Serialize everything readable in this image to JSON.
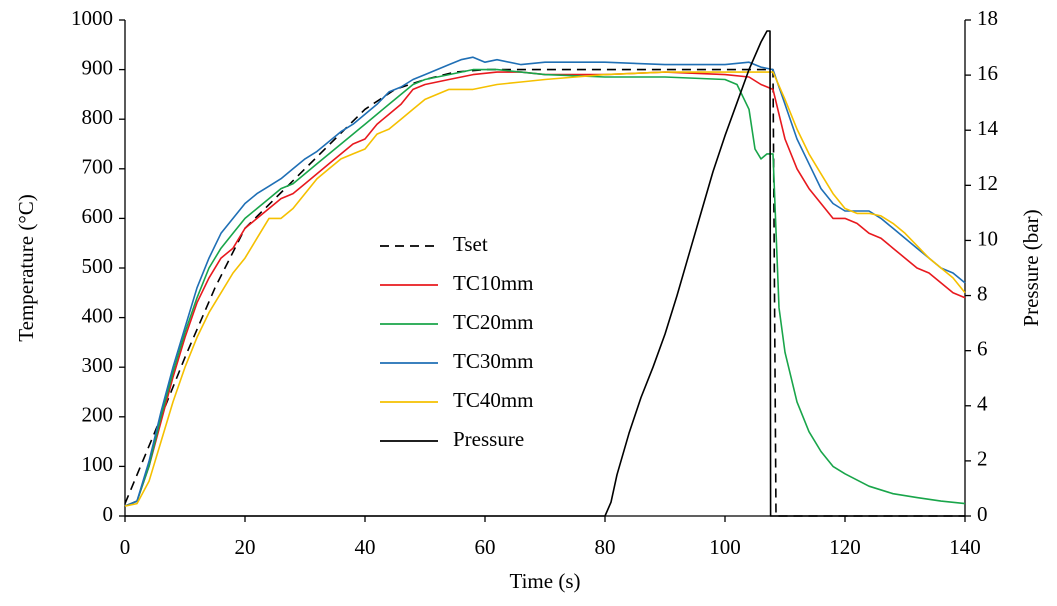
{
  "chart_data": {
    "type": "line",
    "x_label": "Time  (s)",
    "y_label": "Temperature (°C)",
    "y2_label": "Pressure (bar)",
    "xlim": [
      0,
      140
    ],
    "xticks": [
      0,
      20,
      40,
      60,
      80,
      100,
      120,
      140
    ],
    "ylim": [
      0,
      1000
    ],
    "yticks": [
      0,
      100,
      200,
      300,
      400,
      500,
      600,
      700,
      800,
      900,
      1000
    ],
    "y2lim": [
      0,
      18
    ],
    "y2ticks": [
      0,
      2,
      4,
      6,
      8,
      10,
      12,
      14,
      16,
      18
    ],
    "series": [
      {
        "name": "Tset",
        "color": "#000000",
        "line_style": "dashed",
        "x": [
          0,
          5,
          10,
          15,
          20,
          25,
          30,
          35,
          40,
          45,
          50,
          55,
          60,
          65,
          70,
          80,
          90,
          100,
          108,
          108.5,
          140
        ],
        "values": [
          25,
          170,
          320,
          460,
          580,
          640,
          700,
          760,
          820,
          860,
          880,
          895,
          900,
          900,
          900,
          900,
          900,
          900,
          900,
          0,
          0
        ]
      },
      {
        "name": "TC10mm",
        "color": "#e8191e",
        "line_style": "solid",
        "x": [
          0,
          2,
          4,
          6,
          8,
          10,
          12,
          14,
          16,
          18,
          20,
          22,
          24,
          26,
          28,
          30,
          32,
          34,
          36,
          38,
          40,
          42,
          44,
          46,
          48,
          50,
          54,
          58,
          62,
          66,
          70,
          80,
          90,
          100,
          104,
          106,
          108,
          110,
          112,
          114,
          116,
          118,
          120,
          122,
          124,
          126,
          128,
          130,
          132,
          134,
          136,
          138,
          140
        ],
        "values": [
          20,
          30,
          100,
          190,
          280,
          360,
          430,
          480,
          520,
          540,
          580,
          600,
          620,
          640,
          650,
          670,
          690,
          710,
          730,
          750,
          760,
          790,
          810,
          830,
          860,
          870,
          880,
          890,
          895,
          895,
          890,
          890,
          895,
          890,
          885,
          870,
          860,
          760,
          700,
          660,
          630,
          600,
          600,
          590,
          570,
          560,
          540,
          520,
          500,
          490,
          470,
          450,
          440
        ]
      },
      {
        "name": "TC20mm",
        "color": "#19a54a",
        "line_style": "solid",
        "x": [
          0,
          2,
          4,
          6,
          8,
          10,
          12,
          14,
          16,
          18,
          20,
          22,
          24,
          26,
          28,
          30,
          32,
          34,
          36,
          38,
          40,
          42,
          44,
          46,
          48,
          50,
          54,
          58,
          62,
          66,
          70,
          80,
          90,
          100,
          102,
          104,
          105,
          106,
          107,
          108,
          109,
          110,
          112,
          114,
          116,
          118,
          120,
          124,
          128,
          132,
          136,
          140
        ],
        "values": [
          20,
          30,
          100,
          200,
          290,
          370,
          440,
          500,
          540,
          570,
          600,
          620,
          640,
          660,
          670,
          690,
          710,
          730,
          750,
          770,
          790,
          810,
          830,
          850,
          870,
          880,
          890,
          900,
          900,
          895,
          890,
          885,
          885,
          880,
          870,
          820,
          740,
          720,
          730,
          730,
          420,
          330,
          230,
          170,
          130,
          100,
          85,
          60,
          45,
          37,
          30,
          25
        ]
      },
      {
        "name": "TC30mm",
        "color": "#1f6fb5",
        "line_style": "solid",
        "x": [
          0,
          2,
          4,
          6,
          8,
          10,
          12,
          14,
          16,
          18,
          20,
          22,
          24,
          26,
          28,
          30,
          32,
          34,
          36,
          38,
          40,
          42,
          44,
          46,
          48,
          50,
          54,
          56,
          58,
          60,
          62,
          66,
          70,
          80,
          90,
          100,
          104,
          106,
          108,
          110,
          112,
          114,
          116,
          118,
          120,
          122,
          124,
          126,
          128,
          130,
          132,
          134,
          136,
          138,
          140
        ],
        "values": [
          20,
          30,
          110,
          210,
          300,
          380,
          460,
          520,
          570,
          600,
          630,
          650,
          665,
          680,
          700,
          720,
          735,
          755,
          775,
          790,
          810,
          830,
          855,
          865,
          880,
          890,
          910,
          920,
          925,
          915,
          920,
          910,
          915,
          915,
          910,
          910,
          915,
          905,
          900,
          830,
          760,
          710,
          660,
          630,
          615,
          615,
          615,
          600,
          580,
          560,
          540,
          520,
          500,
          490,
          470
        ]
      },
      {
        "name": "TC40mm",
        "color": "#f5c000",
        "line_style": "solid",
        "x": [
          0,
          2,
          4,
          6,
          8,
          10,
          12,
          14,
          16,
          18,
          20,
          22,
          24,
          26,
          28,
          30,
          32,
          34,
          36,
          38,
          40,
          42,
          44,
          46,
          48,
          50,
          54,
          58,
          62,
          66,
          70,
          80,
          90,
          100,
          104,
          108,
          110,
          112,
          114,
          116,
          118,
          120,
          122,
          124,
          126,
          128,
          130,
          132,
          134,
          136,
          138,
          140
        ],
        "values": [
          20,
          25,
          70,
          150,
          230,
          300,
          360,
          410,
          450,
          490,
          520,
          560,
          600,
          600,
          620,
          650,
          680,
          700,
          720,
          730,
          740,
          770,
          780,
          800,
          820,
          840,
          860,
          860,
          870,
          875,
          880,
          890,
          895,
          895,
          895,
          895,
          840,
          780,
          730,
          690,
          650,
          620,
          610,
          610,
          605,
          590,
          570,
          545,
          520,
          500,
          480,
          450
        ]
      },
      {
        "name": "Pressure",
        "color": "#000000",
        "line_style": "solid",
        "axis": "y2",
        "x": [
          0,
          80,
          81,
          82,
          84,
          86,
          88,
          90,
          92,
          94,
          96,
          98,
          100,
          102,
          104,
          106,
          107,
          107.5,
          107.6,
          140
        ],
        "values": [
          0,
          0,
          0.5,
          1.5,
          3,
          4.3,
          5.4,
          6.6,
          8,
          9.5,
          11,
          12.5,
          13.8,
          15,
          16.2,
          17.2,
          17.6,
          17.6,
          0,
          0
        ]
      }
    ]
  }
}
